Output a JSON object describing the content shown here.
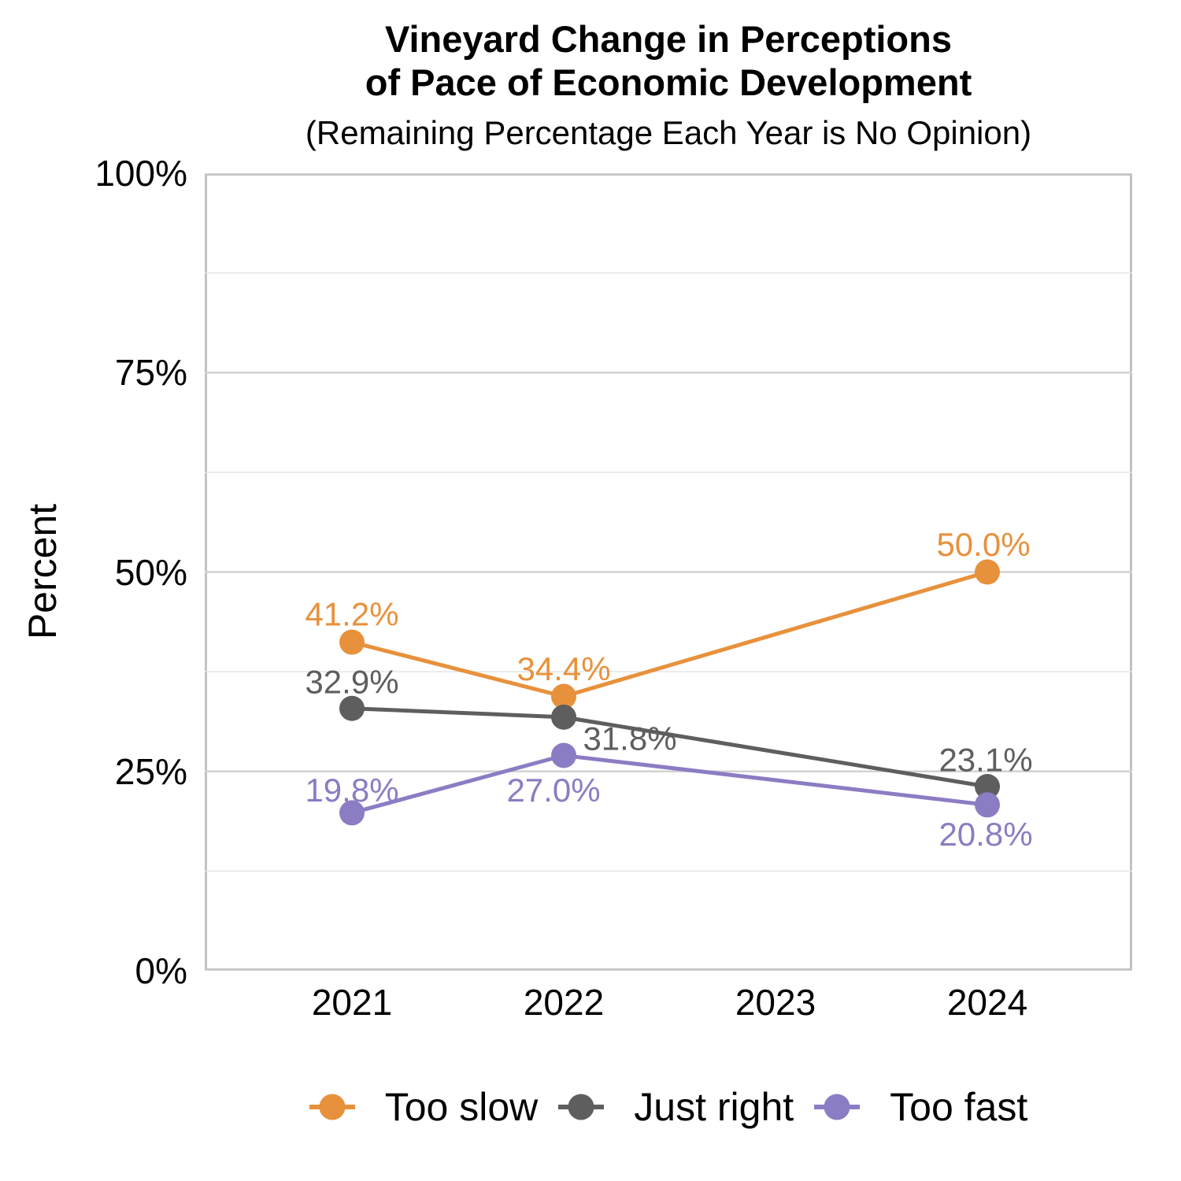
{
  "chart_data": {
    "type": "line",
    "title_lines": [
      "Vineyard Change in Perceptions",
      "of Pace of Economic Development"
    ],
    "subtitle": "(Remaining Percentage Each Year is No Opinion)",
    "ylabel": "Percent",
    "xlabel": "",
    "x_categories": [
      "2021",
      "2022",
      "2023",
      "2024"
    ],
    "ylim": [
      0,
      100
    ],
    "ytick_values": [
      0,
      25,
      50,
      75,
      100
    ],
    "ytick_labels": [
      "0%",
      "25%",
      "50%",
      "75%",
      "100%"
    ],
    "minor_tick_values": [
      12.5,
      37.5,
      62.5,
      87.5
    ],
    "grid": "on",
    "legend_position": "bottom",
    "series": [
      {
        "name": "Too slow",
        "color": "#E8913C",
        "x": [
          "2021",
          "2022",
          "2024"
        ],
        "values": [
          41.2,
          34.4,
          50.0
        ],
        "point_labels": [
          "41.2%",
          "34.4%",
          "50.0%"
        ],
        "label_offsets": [
          [
            0,
            -36
          ],
          [
            0,
            -35
          ],
          [
            -5,
            -35
          ]
        ]
      },
      {
        "name": "Just right",
        "color": "#5E5E5E",
        "x": [
          "2021",
          "2022",
          "2024"
        ],
        "values": [
          32.9,
          31.8,
          23.1
        ],
        "point_labels": [
          "32.9%",
          "31.8%",
          "23.1%"
        ],
        "label_offsets": [
          [
            0,
            -34
          ],
          [
            84,
            27
          ],
          [
            -2,
            -34
          ]
        ]
      },
      {
        "name": "Too fast",
        "color": "#8C7CC3",
        "x": [
          "2021",
          "2022",
          "2024"
        ],
        "values": [
          19.8,
          27.0,
          20.8
        ],
        "point_labels": [
          "19.8%",
          "27.0%",
          "20.8%"
        ],
        "label_offsets": [
          [
            0,
            -29
          ],
          [
            -13,
            44
          ],
          [
            -2,
            37
          ]
        ]
      }
    ],
    "style_colors": {
      "panel_border": "#c2c2c2",
      "grid_major": "#d2d2d2",
      "grid_minor": "#e5e5e5",
      "text": "#000000"
    }
  }
}
